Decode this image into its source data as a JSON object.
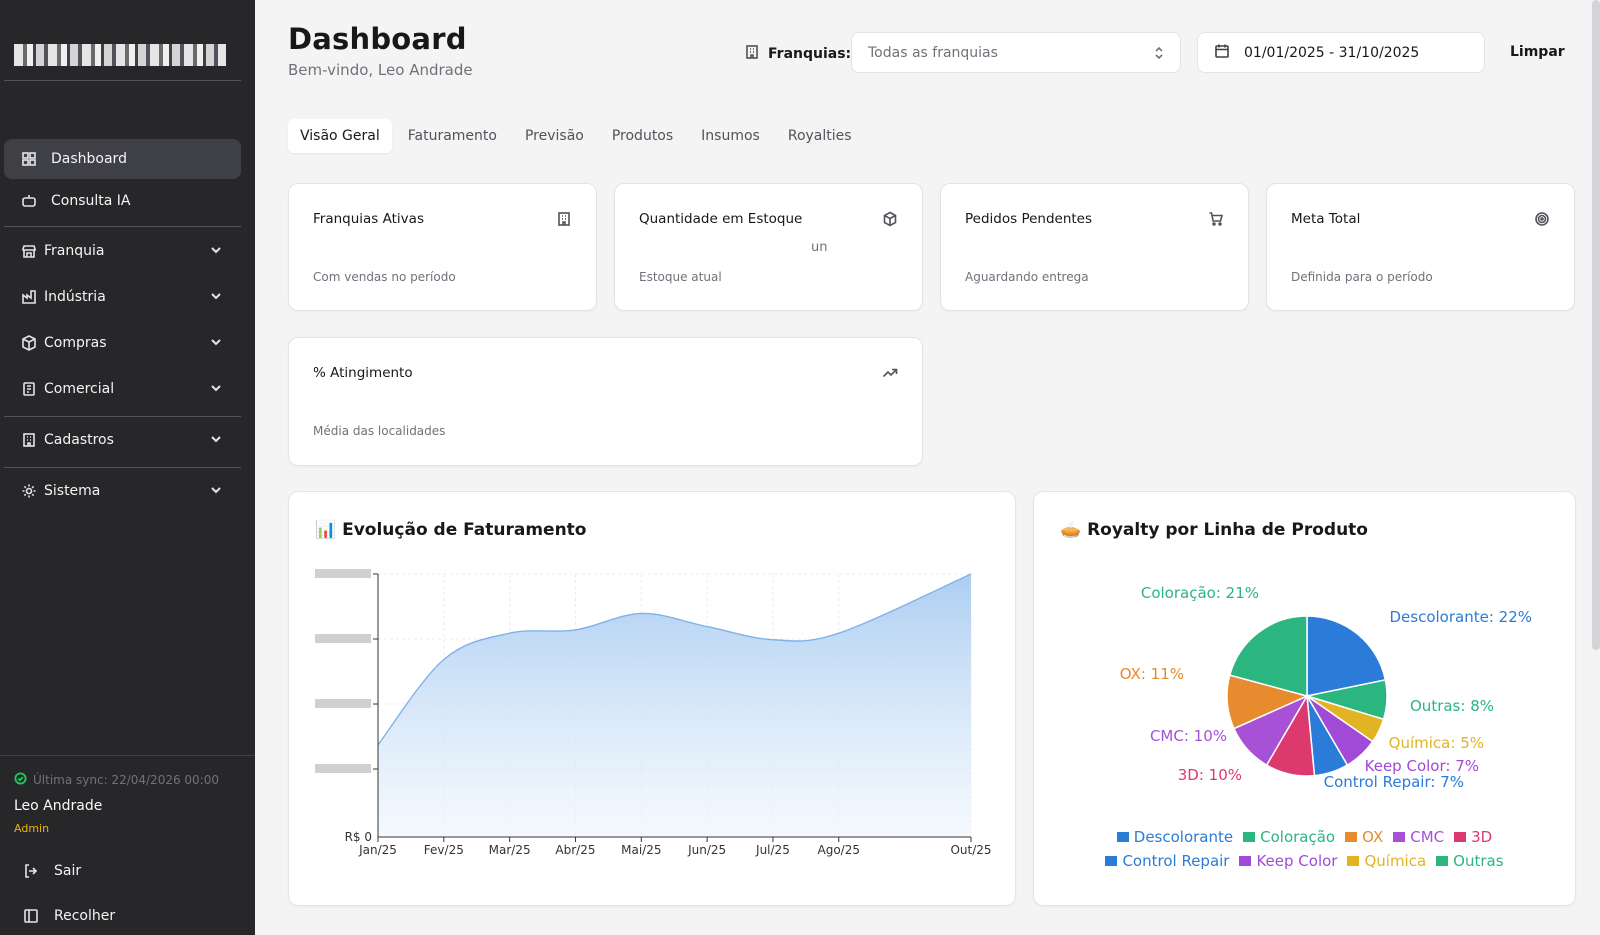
{
  "sidebar": {
    "items": [
      {
        "label": "Dashboard",
        "icon": "layout-grid-icon"
      },
      {
        "label": "Consulta IA",
        "icon": "bot-icon"
      },
      {
        "label": "Franquia",
        "icon": "store-icon"
      },
      {
        "label": "Indústria",
        "icon": "factory-icon"
      },
      {
        "label": "Compras",
        "icon": "package-icon"
      },
      {
        "label": "Comercial",
        "icon": "receipt-icon"
      },
      {
        "label": "Cadastros",
        "icon": "building-icon"
      },
      {
        "label": "Sistema",
        "icon": "gear-icon"
      }
    ],
    "sync_text": "Última sync: 22/04/2026 00:00",
    "user_name": "Leo Andrade",
    "user_role": "Admin",
    "logout_label": "Sair",
    "collapse_label": "Recolher"
  },
  "header": {
    "title": "Dashboard",
    "subtitle": "Bem-vindo, Leo Andrade",
    "filter_label": "Franquias:",
    "select_placeholder": "Todas as franquias",
    "date_range": "01/01/2025 - 31/10/2025",
    "clear_label": "Limpar"
  },
  "tabs": [
    "Visão Geral",
    "Faturamento",
    "Previsão",
    "Produtos",
    "Insumos",
    "Royalties"
  ],
  "kpis": [
    {
      "title": "Franquias Ativas",
      "value": "",
      "unit": "",
      "desc": "Com vendas no período",
      "icon": "building-icon"
    },
    {
      "title": "Quantidade em Estoque",
      "value": "",
      "unit": "un",
      "desc": "Estoque atual",
      "icon": "box-icon"
    },
    {
      "title": "Pedidos Pendentes",
      "value": "",
      "unit": "",
      "desc": "Aguardando entrega",
      "icon": "cart-icon"
    },
    {
      "title": "Meta Total",
      "value": "",
      "unit": "",
      "desc": "Definida para o período",
      "icon": "target-icon"
    },
    {
      "title": "% Atingimento",
      "value": "",
      "unit": "",
      "desc": "Média das localidades",
      "icon": "trending-up-icon"
    }
  ],
  "chart_data": [
    {
      "type": "area",
      "title": "📊 Evolução de Faturamento",
      "categories": [
        "Jan/25",
        "Fev/25",
        "Mar/25",
        "Abr/25",
        "Mai/25",
        "Jun/25",
        "Jul/25",
        "Ago/25",
        "Out/25"
      ],
      "values": [
        1.4,
        2.7,
        3.1,
        3.15,
        3.4,
        3.2,
        3.0,
        3.1,
        4.0
      ],
      "ytick_labels": [
        "R$ 0"
      ],
      "ylim": [
        0,
        4.0
      ],
      "grid": true,
      "color": "#7fb2ea"
    },
    {
      "type": "pie",
      "title": "🥧 Royalty por Linha de Produto",
      "series": [
        {
          "name": "Descolorante",
          "value": 22,
          "label": "Descolorante: 22%",
          "color": "#2b7bd8"
        },
        {
          "name": "Outras",
          "value": 8,
          "label": "Outras: 8%",
          "color": "#2bb680"
        },
        {
          "name": "Química",
          "value": 5,
          "label": "Química: 5%",
          "color": "#e2b322"
        },
        {
          "name": "Keep Color",
          "value": 7,
          "label": "Keep Color: 7%",
          "color": "#a04ad7"
        },
        {
          "name": "Control Repair",
          "value": 7,
          "label": "Control Repair: 7%",
          "color": "#2b7bd8"
        },
        {
          "name": "3D",
          "value": 10,
          "label": "3D: 10%",
          "color": "#dc3a6e"
        },
        {
          "name": "CMC",
          "value": 10,
          "label": "CMC: 10%",
          "color": "#a651d6"
        },
        {
          "name": "OX",
          "value": 11,
          "label": "OX: 11%",
          "color": "#e88a2e"
        },
        {
          "name": "Coloração",
          "value": 21,
          "label": "Coloração: 21%",
          "color": "#2bb680"
        }
      ],
      "legend": "bottom"
    }
  ]
}
